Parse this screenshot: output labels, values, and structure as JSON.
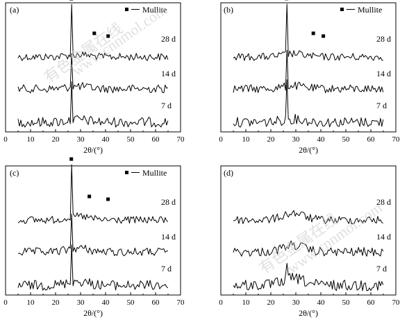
{
  "chart_data": [
    {
      "panel_label": "(a)",
      "type": "line",
      "xlabel": "2θ/(°)",
      "xlim": [
        0,
        70
      ],
      "xticks": [
        0,
        10,
        20,
        30,
        40,
        50,
        60,
        70
      ],
      "legend": {
        "marker": "■",
        "text": "Mullite"
      },
      "series": [
        {
          "name": "28 d",
          "mullite_peaks": [
            26.3,
            35.5,
            41.0
          ]
        },
        {
          "name": "14 d"
        },
        {
          "name": "7 d"
        }
      ]
    },
    {
      "panel_label": "(b)",
      "type": "line",
      "xlabel": "2θ/(°)",
      "xlim": [
        0,
        70
      ],
      "xticks": [
        0,
        10,
        20,
        30,
        40,
        50,
        60,
        70
      ],
      "legend": {
        "marker": "■",
        "text": "Mullite"
      },
      "series": [
        {
          "name": "28 d",
          "mullite_peaks": [
            26.3,
            37.0,
            41.0
          ]
        },
        {
          "name": "14 d"
        },
        {
          "name": "7 d"
        }
      ]
    },
    {
      "panel_label": "(c)",
      "type": "line",
      "xlabel": "2θ/(°)",
      "xlim": [
        0,
        70
      ],
      "xticks": [
        0,
        10,
        20,
        30,
        40,
        50,
        60,
        70
      ],
      "legend": {
        "marker": "■",
        "text": "Mullite"
      },
      "series": [
        {
          "name": "28 d",
          "mullite_peaks": [
            26.3,
            33.5,
            41.0
          ]
        },
        {
          "name": "14 d"
        },
        {
          "name": "7 d"
        }
      ]
    },
    {
      "panel_label": "(d)",
      "type": "line",
      "xlabel": "2θ/(°)",
      "xlim": [
        0,
        70
      ],
      "xticks": [
        0,
        10,
        20,
        30,
        40,
        50,
        60,
        70
      ],
      "series": [
        {
          "name": "28 d"
        },
        {
          "name": "14 d"
        },
        {
          "name": "7 d"
        }
      ]
    }
  ]
}
